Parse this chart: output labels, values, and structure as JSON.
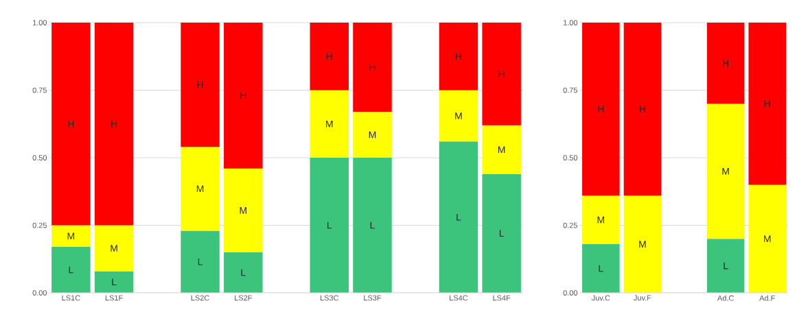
{
  "chart_data": [
    {
      "type": "bar",
      "stacked": true,
      "categories": [
        "LS1C",
        "LS1F",
        null,
        "LS2C",
        "LS2F",
        null,
        "LS3C",
        "LS3F",
        null,
        "LS4C",
        "LS4F"
      ],
      "series": [
        {
          "name": "L",
          "color": "#3cc47c",
          "values": [
            0.17,
            0.08,
            null,
            0.23,
            0.15,
            null,
            0.5,
            0.5,
            null,
            0.56,
            0.44
          ]
        },
        {
          "name": "M",
          "color": "#ffff00",
          "values": [
            0.08,
            0.17,
            null,
            0.31,
            0.31,
            null,
            0.25,
            0.17,
            null,
            0.19,
            0.18
          ]
        },
        {
          "name": "H",
          "color": "#ff0000",
          "values": [
            0.75,
            0.75,
            null,
            0.46,
            0.54,
            null,
            0.25,
            0.33,
            null,
            0.25,
            0.38
          ]
        }
      ],
      "ylim": [
        0,
        1
      ],
      "yticks": [
        {
          "value": 0,
          "label": "0.00"
        },
        {
          "value": 0.25,
          "label": "0.25"
        },
        {
          "value": 0.5,
          "label": "0.50"
        },
        {
          "value": 0.75,
          "label": "0.75"
        },
        {
          "value": 1,
          "label": "1.00"
        }
      ],
      "grid": "y"
    },
    {
      "type": "bar",
      "stacked": true,
      "categories": [
        "Juv.C",
        "Juv.F",
        null,
        "Ad.C",
        "Ad.F"
      ],
      "series": [
        {
          "name": "L",
          "color": "#3cc47c",
          "values": [
            0.18,
            null,
            null,
            0.2,
            null
          ]
        },
        {
          "name": "M",
          "color": "#ffff00",
          "values": [
            0.18,
            0.36,
            null,
            0.5,
            0.4
          ]
        },
        {
          "name": "H",
          "color": "#ff0000",
          "values": [
            0.64,
            0.64,
            null,
            0.3,
            0.6
          ]
        }
      ],
      "ylim": [
        0,
        1
      ],
      "yticks": [
        {
          "value": 0,
          "label": "0.00"
        },
        {
          "value": 0.25,
          "label": "0.25"
        },
        {
          "value": 0.5,
          "label": "0.50"
        },
        {
          "value": 0.75,
          "label": "0.75"
        },
        {
          "value": 1,
          "label": "1.00"
        }
      ],
      "grid": "y"
    }
  ]
}
